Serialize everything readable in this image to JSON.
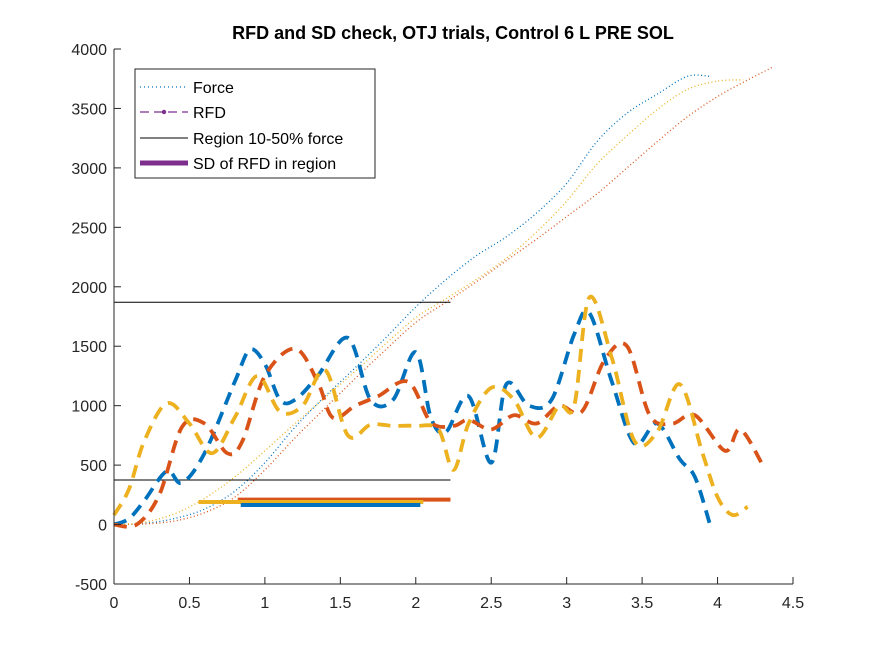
{
  "chart_data": {
    "type": "line",
    "title": "RFD and SD check, OTJ trials, Control 6 L PRE SOL",
    "xlabel": "",
    "ylabel": "",
    "xlim": [
      0,
      4.5
    ],
    "ylim": [
      -500,
      4000
    ],
    "xticks": [
      0,
      0.5,
      1,
      1.5,
      2,
      2.5,
      3,
      3.5,
      4,
      4.5
    ],
    "xtick_labels": [
      "0",
      "0.5",
      "1",
      "1.5",
      "2",
      "2.5",
      "3",
      "3.5",
      "4",
      "4.5"
    ],
    "yticks": [
      -500,
      0,
      500,
      1000,
      1500,
      2000,
      2500,
      3000,
      3500,
      4000
    ],
    "ytick_labels": [
      "-500",
      "0",
      "500",
      "1000",
      "1500",
      "2000",
      "2500",
      "3000",
      "3500",
      "4000"
    ],
    "grid": false,
    "legend_position": "top-left",
    "legend": [
      {
        "label": "Force",
        "style": "dotted",
        "color": "#0072bd"
      },
      {
        "label": "RFD",
        "style": "dashed-marker",
        "color": "#7e2f8e"
      },
      {
        "label": "Region 10-50% force",
        "style": "solid",
        "color": "#000000"
      },
      {
        "label": "SD of RFD in region",
        "style": "thick",
        "color": "#7e2f8e"
      }
    ],
    "colors": {
      "blue": "#0072bd",
      "orange": "#d95319",
      "yellow": "#edb120",
      "purple": "#7e2f8e",
      "black": "#000000"
    },
    "force_series": [
      {
        "color": "#0072bd",
        "x": [
          0,
          0.2,
          0.4,
          0.6,
          0.8,
          1.0,
          1.2,
          1.4,
          1.6,
          1.8,
          2.0,
          2.2,
          2.4,
          2.6,
          2.8,
          3.0,
          3.2,
          3.4,
          3.6,
          3.8,
          3.95
        ],
        "y": [
          0,
          10,
          50,
          130,
          280,
          520,
          820,
          1080,
          1320,
          1570,
          1830,
          2060,
          2260,
          2420,
          2620,
          2870,
          3220,
          3460,
          3620,
          3770,
          3770
        ]
      },
      {
        "color": "#d95319",
        "x": [
          0,
          0.2,
          0.4,
          0.6,
          0.8,
          1.0,
          1.2,
          1.4,
          1.6,
          1.8,
          2.0,
          2.2,
          2.4,
          2.6,
          2.8,
          3.0,
          3.2,
          3.4,
          3.6,
          3.8,
          4.0,
          4.2,
          4.37
        ],
        "y": [
          0,
          5,
          30,
          100,
          230,
          460,
          730,
          980,
          1230,
          1470,
          1700,
          1870,
          2040,
          2220,
          2400,
          2590,
          2780,
          3000,
          3220,
          3430,
          3600,
          3740,
          3850
        ]
      },
      {
        "color": "#edb120",
        "x": [
          0,
          0.2,
          0.4,
          0.6,
          0.8,
          1.0,
          1.2,
          1.4,
          1.6,
          1.8,
          2.0,
          2.2,
          2.4,
          2.6,
          2.8,
          3.0,
          3.2,
          3.4,
          3.6,
          3.8,
          4.0,
          4.17
        ],
        "y": [
          0,
          20,
          90,
          220,
          400,
          620,
          850,
          1070,
          1290,
          1520,
          1740,
          1900,
          2060,
          2240,
          2460,
          2720,
          3030,
          3270,
          3490,
          3660,
          3730,
          3740
        ]
      }
    ],
    "rfd_series": [
      {
        "color": "#0072bd",
        "x": [
          0,
          0.1,
          0.2,
          0.35,
          0.45,
          0.6,
          0.8,
          0.9,
          1.0,
          1.1,
          1.2,
          1.35,
          1.55,
          1.7,
          1.85,
          2.0,
          2.1,
          2.2,
          2.35,
          2.5,
          2.6,
          2.75,
          2.9,
          3.05,
          3.15,
          3.3,
          3.45,
          3.6,
          3.75,
          3.85,
          3.95
        ],
        "y": [
          0,
          50,
          200,
          450,
          350,
          600,
          1200,
          1470,
          1350,
          1050,
          1050,
          1250,
          1570,
          1050,
          1050,
          1450,
          900,
          780,
          1080,
          520,
          1180,
          1000,
          1050,
          1600,
          1780,
          1200,
          680,
          850,
          550,
          400,
          0
        ]
      },
      {
        "color": "#d95319",
        "x": [
          0,
          0.15,
          0.3,
          0.45,
          0.6,
          0.75,
          0.85,
          1.0,
          1.2,
          1.35,
          1.45,
          1.6,
          1.75,
          1.95,
          2.1,
          2.25,
          2.35,
          2.5,
          2.65,
          2.8,
          2.95,
          3.1,
          3.25,
          3.4,
          3.55,
          3.7,
          3.85,
          4.05,
          4.15,
          4.3
        ],
        "y": [
          0,
          0,
          250,
          820,
          850,
          600,
          700,
          1250,
          1480,
          1200,
          900,
          1000,
          1080,
          1200,
          860,
          830,
          880,
          800,
          920,
          850,
          1000,
          950,
          1380,
          1500,
          920,
          850,
          920,
          620,
          800,
          500
        ]
      },
      {
        "color": "#edb120",
        "x": [
          0,
          0.1,
          0.2,
          0.35,
          0.5,
          0.65,
          0.8,
          0.95,
          1.1,
          1.25,
          1.4,
          1.55,
          1.7,
          1.85,
          2.0,
          2.15,
          2.25,
          2.35,
          2.5,
          2.65,
          2.8,
          2.95,
          3.05,
          3.15,
          3.3,
          3.45,
          3.6,
          3.75,
          3.9,
          4.0,
          4.1,
          4.2
        ],
        "y": [
          80,
          300,
          700,
          1020,
          850,
          600,
          900,
          1250,
          950,
          1000,
          1300,
          750,
          840,
          830,
          830,
          800,
          460,
          850,
          1150,
          1050,
          730,
          1000,
          1000,
          1910,
          1400,
          700,
          780,
          1180,
          600,
          230,
          80,
          150
        ]
      }
    ],
    "region_lines": [
      {
        "y": 1870,
        "x": [
          0,
          2.23
        ]
      },
      {
        "y": 375,
        "x": [
          0,
          2.23
        ]
      }
    ],
    "sd_bars": [
      {
        "color": "#d95319",
        "x": [
          0.82,
          2.23
        ],
        "y": 210
      },
      {
        "color": "#edb120",
        "x": [
          0.56,
          2.05
        ],
        "y": 190
      },
      {
        "color": "#0072bd",
        "x": [
          0.84,
          2.03
        ],
        "y": 165
      }
    ]
  }
}
